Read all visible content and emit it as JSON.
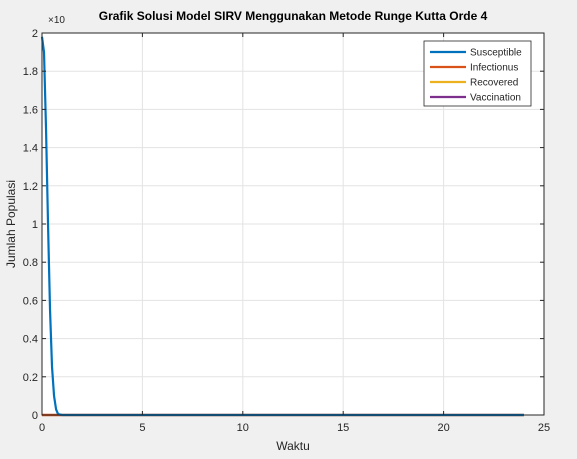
{
  "chart_data": {
    "type": "line",
    "title": "Grafik Solusi Model SIRV Menggunakan Metode Runge Kutta Orde 4",
    "xlabel": "Waktu",
    "ylabel": "Jumlah Populasi",
    "y_exponent_label": "×10",
    "xlim": [
      0,
      25
    ],
    "ylim": [
      0,
      2
    ],
    "xticks": [
      0,
      5,
      10,
      15,
      20,
      25
    ],
    "yticks": [
      0,
      0.2,
      0.4,
      0.6,
      0.8,
      1,
      1.2,
      1.4,
      1.6,
      1.8,
      2
    ],
    "x_tick_labels": [
      "0",
      "5",
      "10",
      "15",
      "20",
      "25"
    ],
    "y_tick_labels": [
      "0",
      "0.2",
      "0.4",
      "0.6",
      "0.8",
      "1",
      "1.2",
      "1.4",
      "1.6",
      "1.8",
      "2"
    ],
    "grid": true,
    "legend_position": "top-right",
    "series": [
      {
        "name": "Susceptible",
        "color": "#0072BD",
        "x": [
          0,
          0.1,
          0.2,
          0.3,
          0.4,
          0.5,
          0.6,
          0.7,
          0.8,
          1,
          2,
          5,
          10,
          15,
          20,
          24
        ],
        "y": [
          1.98,
          1.9,
          1.5,
          1.0,
          0.55,
          0.25,
          0.1,
          0.03,
          0.005,
          0,
          0,
          0,
          0,
          0,
          0,
          0
        ]
      },
      {
        "name": "Infectionus",
        "color": "#D95319",
        "x": [
          0,
          24
        ],
        "y": [
          0,
          0
        ]
      },
      {
        "name": "Recovered",
        "color": "#EDB120",
        "x": [
          0,
          24
        ],
        "y": [
          0,
          0
        ]
      },
      {
        "name": "Vaccination",
        "color": "#7E2F8E",
        "x": [
          0,
          24
        ],
        "y": [
          0,
          0
        ]
      }
    ]
  }
}
